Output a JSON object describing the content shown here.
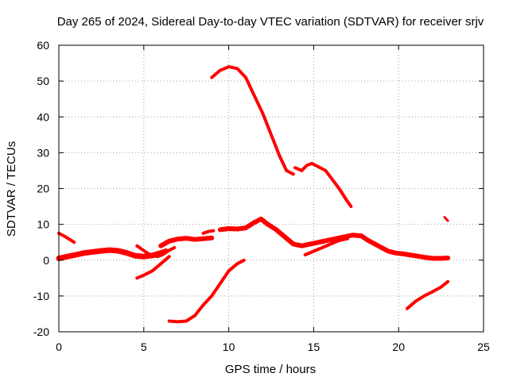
{
  "chart_data": {
    "type": "scatter",
    "title": "Day 265 of 2024, Sidereal Day-to-day VTEC variation (SDTVAR) for receiver srjv",
    "xlabel": "GPS time / hours",
    "ylabel": "SDTVAR / TECUs",
    "xlim": [
      0,
      25
    ],
    "ylim": [
      -20,
      60
    ],
    "xticks": [
      0,
      5,
      10,
      15,
      20,
      25
    ],
    "yticks": [
      -20,
      -10,
      0,
      10,
      20,
      30,
      40,
      50,
      60
    ],
    "xtick_labels": [
      "0",
      "5",
      "10",
      "15",
      "20",
      "25"
    ],
    "ytick_labels": [
      "-20",
      "-10",
      "0",
      "10",
      "20",
      "30",
      "40",
      "50",
      "60"
    ],
    "grid": true,
    "color": "#ff0000",
    "series": [
      {
        "name": "arc-1",
        "thickness": 4,
        "x": [
          0.0,
          0.4,
          0.8,
          0.9
        ],
        "y": [
          7.5,
          6.5,
          5.3,
          5.0
        ]
      },
      {
        "name": "arc-2",
        "thickness": 7,
        "x": [
          0.0,
          0.5,
          1.0,
          1.5,
          2.0,
          2.5,
          3.0,
          3.5,
          4.0,
          4.5,
          5.0,
          5.5,
          6.0,
          6.3
        ],
        "y": [
          0.5,
          1.0,
          1.5,
          2.0,
          2.3,
          2.6,
          2.8,
          2.6,
          2.0,
          1.2,
          1.0,
          1.3,
          2.0,
          2.5
        ]
      },
      {
        "name": "arc-3",
        "thickness": 6,
        "x": [
          6.0,
          6.5,
          7.0,
          7.5,
          8.0,
          8.5,
          9.0
        ],
        "y": [
          4.0,
          5.3,
          5.9,
          6.1,
          5.8,
          6.0,
          6.2
        ]
      },
      {
        "name": "arc-4",
        "thickness": 4,
        "x": [
          4.6,
          4.9,
          5.2,
          5.5,
          5.8,
          6.1,
          6.4,
          6.8
        ],
        "y": [
          4.0,
          3.0,
          2.0,
          1.2,
          1.0,
          1.5,
          2.5,
          3.5
        ]
      },
      {
        "name": "arc-5",
        "thickness": 4,
        "x": [
          4.6,
          5.0,
          5.5,
          6.0,
          6.5
        ],
        "y": [
          -5.0,
          -4.2,
          -3.0,
          -1.0,
          1.0
        ]
      },
      {
        "name": "arc-6",
        "thickness": 4,
        "x": [
          6.5,
          7.0,
          7.5,
          8.0,
          8.5,
          9.0,
          9.5,
          10.0,
          10.5,
          10.9
        ],
        "y": [
          -17.0,
          -17.2,
          -17.0,
          -15.5,
          -12.5,
          -10.0,
          -6.5,
          -3.0,
          -1.0,
          0.0
        ]
      },
      {
        "name": "arc-7",
        "thickness": 4,
        "x": [
          8.5,
          8.8,
          9.1
        ],
        "y": [
          7.5,
          8.0,
          8.2
        ]
      },
      {
        "name": "arc-8",
        "thickness": 6,
        "x": [
          9.5,
          10.0,
          10.5,
          11.0,
          11.5,
          11.9,
          12.3,
          12.8,
          13.3,
          13.8,
          14.3,
          14.8,
          15.3,
          15.8,
          16.3,
          16.8,
          17.3,
          17.8,
          18.2,
          18.6,
          19.0,
          19.4,
          19.8,
          20.2,
          20.6,
          21.0,
          21.5,
          22.0,
          22.5,
          22.9
        ],
        "y": [
          8.5,
          8.8,
          8.7,
          9.0,
          10.5,
          11.5,
          10.0,
          8.5,
          6.5,
          4.5,
          4.0,
          4.5,
          5.0,
          5.5,
          6.0,
          6.5,
          7.0,
          6.8,
          5.5,
          4.5,
          3.5,
          2.5,
          2.0,
          1.8,
          1.5,
          1.2,
          0.8,
          0.5,
          0.5,
          0.6
        ]
      },
      {
        "name": "arc-9",
        "thickness": 4,
        "x": [
          14.5,
          15.0,
          15.5,
          16.0,
          16.5,
          17.0
        ],
        "y": [
          1.5,
          2.5,
          3.5,
          4.5,
          5.5,
          6.0
        ]
      },
      {
        "name": "arc-10",
        "thickness": 4,
        "x": [
          9.0,
          9.5,
          10.0,
          10.5,
          11.0,
          11.5,
          12.0,
          12.5,
          13.0,
          13.4,
          13.8
        ],
        "y": [
          51.0,
          53.0,
          54.0,
          53.5,
          51.0,
          46.0,
          41.0,
          35.0,
          29.0,
          25.0,
          24.0
        ]
      },
      {
        "name": "arc-11",
        "thickness": 4,
        "x": [
          13.9,
          14.3,
          14.6,
          14.9,
          15.3,
          15.7,
          16.1,
          16.5,
          16.9,
          17.2
        ],
        "y": [
          25.8,
          25.0,
          26.5,
          27.0,
          26.0,
          25.0,
          22.5,
          20.0,
          17.0,
          15.0
        ]
      },
      {
        "name": "arc-12",
        "thickness": 4,
        "x": [
          20.5,
          21.0,
          21.5,
          22.0,
          22.5,
          22.9
        ],
        "y": [
          -13.5,
          -11.5,
          -10.0,
          -8.8,
          -7.5,
          -6.0
        ]
      },
      {
        "name": "arc-13",
        "thickness": 3,
        "x": [
          22.7,
          22.9
        ],
        "y": [
          12.0,
          11.0
        ]
      }
    ]
  }
}
